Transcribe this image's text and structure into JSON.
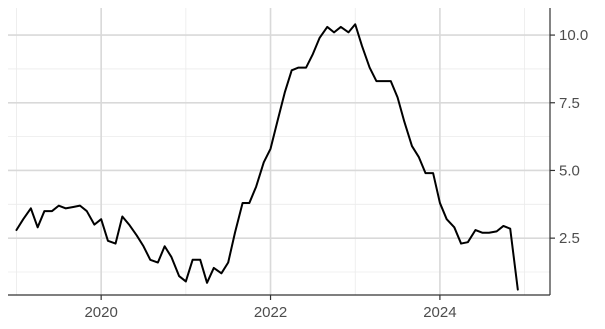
{
  "chart_data": {
    "type": "line",
    "title": "",
    "xlabel": "",
    "ylabel": "",
    "y_axis_position": "right",
    "grid": true,
    "legend": "none",
    "xlim": [
      2018.9,
      2025.3
    ],
    "ylim": [
      0.4,
      11.0
    ],
    "x_ticks": [
      2020,
      2022,
      2024
    ],
    "x_tick_labels": [
      "2020",
      "2022",
      "2024"
    ],
    "y_ticks": [
      2.5,
      5.0,
      7.5,
      10.0
    ],
    "y_tick_labels": [
      "2.5",
      "5.0",
      "7.5",
      "10.0"
    ],
    "x_minor_ticks": [
      2019,
      2021,
      2023,
      2025
    ],
    "y_minor_ticks": [
      1.25,
      3.75,
      6.25,
      8.75
    ],
    "series": [
      {
        "color": "#000000",
        "x": [
          2019.0,
          2019.08,
          2019.17,
          2019.25,
          2019.33,
          2019.42,
          2019.5,
          2019.58,
          2019.67,
          2019.75,
          2019.83,
          2019.92,
          2020.0,
          2020.08,
          2020.17,
          2020.25,
          2020.33,
          2020.42,
          2020.5,
          2020.58,
          2020.67,
          2020.75,
          2020.83,
          2020.92,
          2021.0,
          2021.08,
          2021.17,
          2021.25,
          2021.33,
          2021.42,
          2021.5,
          2021.58,
          2021.67,
          2021.75,
          2021.83,
          2021.92,
          2022.0,
          2022.08,
          2022.17,
          2022.25,
          2022.33,
          2022.42,
          2022.5,
          2022.58,
          2022.67,
          2022.75,
          2022.83,
          2022.92,
          2023.0,
          2023.08,
          2023.17,
          2023.25,
          2023.33,
          2023.42,
          2023.5,
          2023.58,
          2023.67,
          2023.75,
          2023.83,
          2023.92,
          2024.0,
          2024.08,
          2024.17,
          2024.25,
          2024.33,
          2024.42,
          2024.5,
          2024.58,
          2024.67,
          2024.75,
          2024.83,
          2024.92
        ],
        "y": [
          2.8,
          3.2,
          3.6,
          2.9,
          3.5,
          3.5,
          3.7,
          3.6,
          3.65,
          3.7,
          3.5,
          3.0,
          3.2,
          2.4,
          2.3,
          3.3,
          3.0,
          2.6,
          2.2,
          1.7,
          1.6,
          2.2,
          1.8,
          1.1,
          0.9,
          1.7,
          1.7,
          0.85,
          1.4,
          1.2,
          1.6,
          2.7,
          3.8,
          3.8,
          4.4,
          5.3,
          5.8,
          6.8,
          7.9,
          8.7,
          8.8,
          8.8,
          9.3,
          9.9,
          10.3,
          10.1,
          10.3,
          10.1,
          10.4,
          9.6,
          8.8,
          8.3,
          8.3,
          8.3,
          7.7,
          6.8,
          5.9,
          5.5,
          4.9,
          4.9,
          3.8,
          3.2,
          2.9,
          2.3,
          2.35,
          2.8,
          2.7,
          2.7,
          2.75,
          2.95,
          2.85,
          0.6
        ]
      }
    ]
  }
}
